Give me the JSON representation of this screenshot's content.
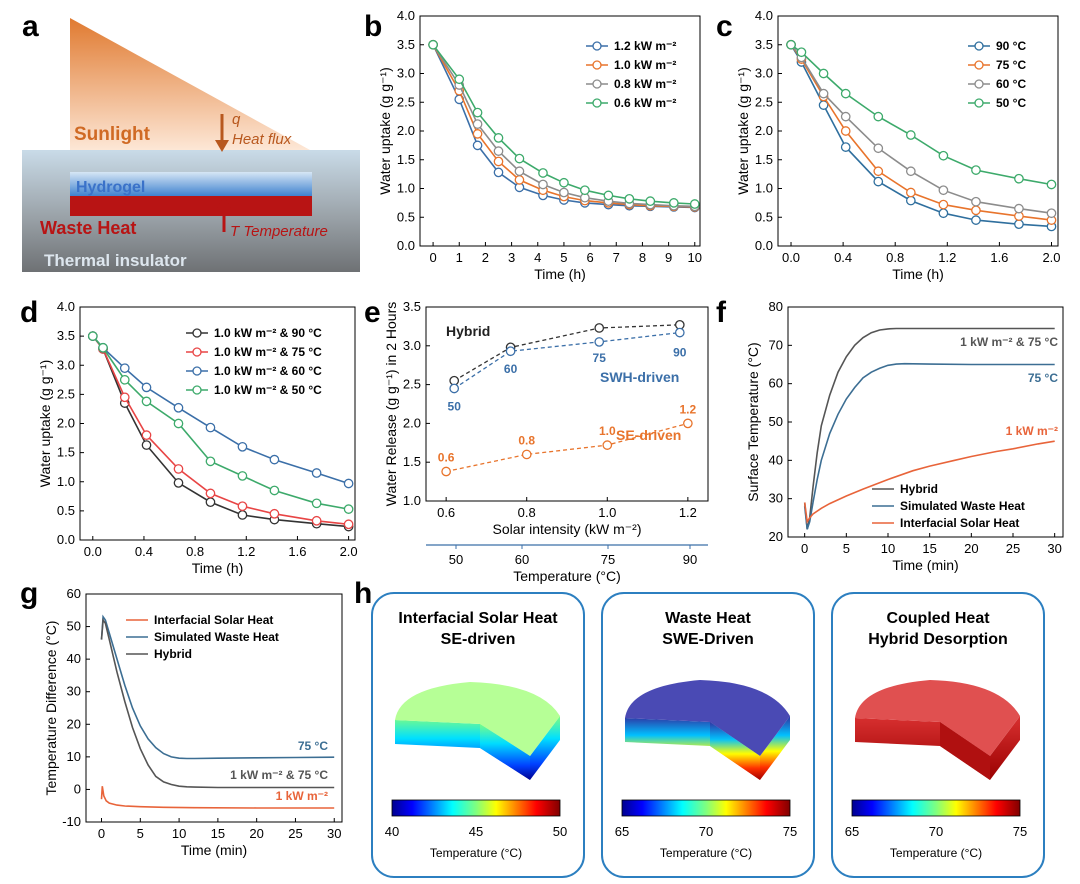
{
  "colors": {
    "blue": "#3b6fa8",
    "orange": "#e8742c",
    "gray": "#8c8c8c",
    "green": "#3daa6b",
    "black": "#333333",
    "red": "#e84545",
    "darkblue": "#2f6f9e",
    "sim": "#3c6e93",
    "solar": "#e8643a"
  },
  "panel_labels": [
    "a",
    "b",
    "c",
    "d",
    "e",
    "f",
    "g",
    "h"
  ],
  "panel_a": {
    "sunlight": "Sunlight",
    "q": "q",
    "heat_flux": "Heat flux",
    "hydrogel": "Hydrogel",
    "waste_heat": "Waste Heat",
    "temperature": "T Temperature",
    "insulator": "Thermal insulator"
  },
  "panel_b": {
    "type": "line",
    "xlabel": "Time (h)",
    "ylabel": "Water uptake (g g⁻¹)",
    "xlim": [
      -0.5,
      10.2
    ],
    "ylim": [
      0,
      4
    ],
    "xticks": [
      0,
      1,
      2,
      3,
      4,
      5,
      6,
      7,
      8,
      9,
      10
    ],
    "yticks": [
      0,
      0.5,
      1,
      1.5,
      2,
      2.5,
      3,
      3.5,
      4
    ],
    "legend": [
      "1.2 kW m⁻²",
      "1.0 kW m⁻²",
      "0.8 kW m⁻²",
      "0.6 kW m⁻²"
    ],
    "x": [
      0,
      1,
      1.7,
      2.5,
      3.3,
      4.2,
      5,
      5.8,
      6.7,
      7.5,
      8.3,
      9.2,
      10
    ],
    "series": [
      {
        "values": [
          3.5,
          2.55,
          1.75,
          1.28,
          1.02,
          0.88,
          0.8,
          0.75,
          0.72,
          0.7,
          0.69,
          0.68,
          0.67
        ]
      },
      {
        "values": [
          3.5,
          2.7,
          1.95,
          1.47,
          1.15,
          0.97,
          0.86,
          0.79,
          0.75,
          0.72,
          0.7,
          0.69,
          0.68
        ]
      },
      {
        "values": [
          3.5,
          2.8,
          2.12,
          1.65,
          1.3,
          1.07,
          0.93,
          0.84,
          0.78,
          0.74,
          0.72,
          0.7,
          0.69
        ]
      },
      {
        "values": [
          3.5,
          2.9,
          2.32,
          1.88,
          1.52,
          1.27,
          1.1,
          0.97,
          0.88,
          0.82,
          0.78,
          0.75,
          0.73
        ]
      }
    ]
  },
  "panel_c": {
    "type": "line",
    "xlabel": "Time (h)",
    "ylabel": "Water uptake (g g⁻¹)",
    "xlim": [
      -0.1,
      2.05
    ],
    "ylim": [
      0,
      4
    ],
    "xticks": [
      0,
      0.4,
      0.8,
      1.2,
      1.6,
      2.0
    ],
    "xticklabels": [
      "0.0",
      "0.4",
      "0.8",
      "1.2",
      "1.6",
      "2.0"
    ],
    "yticks": [
      0,
      0.5,
      1,
      1.5,
      2,
      2.5,
      3,
      3.5,
      4
    ],
    "legend": [
      "90 °C",
      "75 °C",
      "60 °C",
      "50 °C"
    ],
    "x": [
      0,
      0.08,
      0.25,
      0.42,
      0.67,
      0.92,
      1.17,
      1.42,
      1.75,
      2.0
    ],
    "series": [
      {
        "values": [
          3.5,
          3.2,
          2.45,
          1.72,
          1.12,
          0.79,
          0.57,
          0.45,
          0.38,
          0.34
        ]
      },
      {
        "values": [
          3.5,
          3.25,
          2.6,
          2.0,
          1.3,
          0.93,
          0.72,
          0.62,
          0.52,
          0.45
        ]
      },
      {
        "values": [
          3.5,
          3.28,
          2.65,
          2.25,
          1.7,
          1.3,
          0.97,
          0.77,
          0.65,
          0.57
        ]
      },
      {
        "values": [
          3.5,
          3.37,
          3.0,
          2.65,
          2.25,
          1.93,
          1.57,
          1.32,
          1.17,
          1.07
        ]
      }
    ]
  },
  "panel_d": {
    "type": "line",
    "xlabel": "Time (h)",
    "ylabel": "Water uptake (g g⁻¹)",
    "xlim": [
      -0.1,
      2.05
    ],
    "ylim": [
      0,
      4
    ],
    "xticks": [
      0,
      0.4,
      0.8,
      1.2,
      1.6,
      2.0
    ],
    "xticklabels": [
      "0.0",
      "0.4",
      "0.8",
      "1.2",
      "1.6",
      "2.0"
    ],
    "yticks": [
      0,
      0.5,
      1,
      1.5,
      2,
      2.5,
      3,
      3.5,
      4
    ],
    "legend": [
      "1.0 kW m⁻² & 90 °C",
      "1.0 kW m⁻² & 75 °C",
      "1.0 kW m⁻² & 60 °C",
      "1.0 kW m⁻² & 50 °C"
    ],
    "x": [
      0,
      0.08,
      0.25,
      0.42,
      0.67,
      0.92,
      1.17,
      1.42,
      1.75,
      2.0
    ],
    "series": [
      {
        "values": [
          3.5,
          3.28,
          2.35,
          1.63,
          0.98,
          0.65,
          0.43,
          0.35,
          0.28,
          0.23
        ]
      },
      {
        "values": [
          3.5,
          3.28,
          2.45,
          1.8,
          1.22,
          0.8,
          0.58,
          0.45,
          0.33,
          0.27
        ]
      },
      {
        "values": [
          3.5,
          3.3,
          2.95,
          2.62,
          2.27,
          1.93,
          1.6,
          1.38,
          1.15,
          0.97
        ]
      },
      {
        "values": [
          3.5,
          3.3,
          2.75,
          2.38,
          2.0,
          1.35,
          1.1,
          0.85,
          0.63,
          0.53
        ]
      }
    ]
  },
  "panel_e": {
    "type": "line",
    "xlabel": "Solar intensity (kW m⁻²)",
    "xlabel2": "Temperature (°C)",
    "ylabel": "Water Release (g g⁻¹) in 2 Hours",
    "xlim": [
      0.55,
      1.25
    ],
    "ylim": [
      1,
      3.5
    ],
    "xticks": [
      0.6,
      0.8,
      1.0,
      1.2
    ],
    "xticklabels": [
      "0.6",
      "0.8",
      "1.0",
      "1.2"
    ],
    "yticks": [
      1,
      1.5,
      2,
      2.5,
      3,
      3.5
    ],
    "yticklabels": [
      "1.0",
      "1.5",
      "2.0",
      "2.5",
      "3.0",
      "3.5"
    ],
    "x2ticks": [
      50,
      60,
      75,
      90
    ],
    "x2labels": [
      "50",
      "60",
      "75",
      "90"
    ],
    "hybrid": {
      "name": "Hybrid",
      "x": [
        0.62,
        0.76,
        0.98,
        1.18
      ],
      "values": [
        2.55,
        2.98,
        3.23,
        3.27
      ]
    },
    "swh": {
      "name": "SWH-driven",
      "x": [
        0.62,
        0.76,
        0.98,
        1.18
      ],
      "values": [
        2.45,
        2.93,
        3.05,
        3.17
      ],
      "labels": [
        "50",
        "60",
        "75",
        "90"
      ]
    },
    "se": {
      "name": "SE-driven",
      "x": [
        0.6,
        0.8,
        1.0,
        1.2
      ],
      "values": [
        1.38,
        1.6,
        1.72,
        2.0
      ],
      "labels": [
        "0.6",
        "0.8",
        "1.0",
        "1.2"
      ]
    }
  },
  "panel_f": {
    "type": "line",
    "xlabel": "Time (min)",
    "ylabel": "Surface Temperature (°C)",
    "xlim": [
      -2,
      31
    ],
    "ylim": [
      20,
      80
    ],
    "xticks": [
      0,
      5,
      10,
      15,
      20,
      25,
      30
    ],
    "yticks": [
      20,
      30,
      40,
      50,
      60,
      70,
      80
    ],
    "legend": [
      "Hybrid",
      "Simulated Waste Heat",
      "Interfacial Solar Heat"
    ],
    "ann": [
      "1 kW m⁻² & 75 °C",
      "75 °C",
      "1 kW m⁻²"
    ],
    "hybrid": {
      "x": [
        0,
        0.3,
        0.6,
        1,
        1.5,
        2,
        3,
        4,
        5,
        6,
        7,
        8,
        9,
        10,
        11,
        12,
        15,
        20,
        25,
        30
      ],
      "values": [
        29,
        22,
        25,
        33,
        42,
        49,
        57,
        63,
        67,
        70,
        72,
        73.3,
        74,
        74.3,
        74.4,
        74.4,
        74.4,
        74.4,
        74.4,
        74.4
      ]
    },
    "sim": {
      "x": [
        0,
        0.3,
        0.6,
        1,
        1.5,
        2,
        3,
        4,
        5,
        6,
        7,
        8,
        9,
        10,
        11,
        12,
        15,
        20,
        25,
        30
      ],
      "values": [
        28,
        22,
        24,
        29,
        35,
        40,
        47,
        52,
        56,
        59,
        61.5,
        63,
        64,
        64.8,
        65.1,
        65.2,
        65.1,
        65,
        65,
        65
      ]
    },
    "solar": {
      "x": [
        0,
        0.3,
        0.6,
        1,
        2,
        3,
        5,
        7,
        10,
        13,
        15,
        18,
        20,
        23,
        25,
        28,
        30
      ],
      "values": [
        29,
        24,
        25,
        26,
        27.5,
        28.7,
        30.7,
        32.5,
        35,
        37.3,
        38.5,
        40,
        41,
        42.3,
        43,
        44.3,
        45
      ]
    }
  },
  "panel_g": {
    "type": "line",
    "xlabel": "Time (min)",
    "ylabel": "Temperature Difference (°C)",
    "xlim": [
      -2,
      31
    ],
    "ylim": [
      -10,
      60
    ],
    "xticks": [
      0,
      5,
      10,
      15,
      20,
      25,
      30
    ],
    "yticks": [
      -10,
      0,
      10,
      20,
      30,
      40,
      50,
      60
    ],
    "legend": [
      "Interfacial Solar Heat",
      "Simulated Waste Heat",
      "Hybrid"
    ],
    "ann": [
      "75 °C",
      "1 kW m⁻² & 75 °C",
      "1 kW m⁻²"
    ],
    "sim": {
      "x": [
        0,
        0.2,
        0.5,
        1,
        2,
        3,
        4,
        5,
        6,
        7,
        8,
        9,
        10,
        11,
        12,
        15,
        20,
        25,
        30
      ],
      "values": [
        46,
        53,
        52,
        48,
        40,
        32,
        25,
        19.5,
        15.5,
        12.8,
        11,
        10,
        9.6,
        9.5,
        9.5,
        9.6,
        9.7,
        9.8,
        9.9
      ]
    },
    "hybrid": {
      "x": [
        0,
        0.2,
        0.5,
        1,
        2,
        3,
        4,
        5,
        6,
        7,
        8,
        9,
        10,
        11,
        12,
        15,
        20,
        25,
        30
      ],
      "values": [
        46,
        52,
        51,
        46,
        36,
        27,
        19,
        12.5,
        7.5,
        4,
        2.3,
        1.5,
        1,
        0.8,
        0.7,
        0.6,
        0.6,
        0.6,
        0.6
      ]
    },
    "solar": {
      "x": [
        0,
        0.1,
        0.3,
        0.6,
        1,
        2,
        3,
        5,
        8,
        12,
        20,
        30
      ],
      "values": [
        -3,
        1,
        -2,
        -3.5,
        -4.2,
        -4.8,
        -5.1,
        -5.3,
        -5.5,
        -5.6,
        -5.7,
        -5.7
      ]
    }
  },
  "panel_h": {
    "boxes": [
      {
        "title1": "Interfacial Solar Heat",
        "title2": "SE-driven",
        "ticks": [
          "40",
          "45",
          "50"
        ],
        "cblabel": "Temperature (°C)"
      },
      {
        "title1": "Waste Heat",
        "title2": "SWE-Driven",
        "ticks": [
          "65",
          "70",
          "75"
        ],
        "cblabel": "Temperature (°C)"
      },
      {
        "title1": "Coupled Heat",
        "title2": "Hybrid Desorption",
        "ticks": [
          "65",
          "70",
          "75"
        ],
        "cblabel": "Temperature (°C)"
      }
    ]
  }
}
